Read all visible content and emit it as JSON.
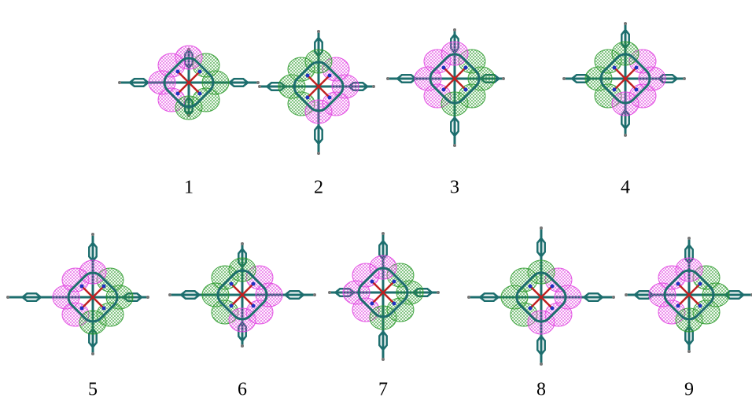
{
  "panels": [
    {
      "label": "1"
    },
    {
      "label": "2"
    },
    {
      "label": "3"
    },
    {
      "label": "4"
    },
    {
      "label": "5"
    },
    {
      "label": "6"
    },
    {
      "label": "7"
    },
    {
      "label": "8"
    },
    {
      "label": "9"
    }
  ]
}
